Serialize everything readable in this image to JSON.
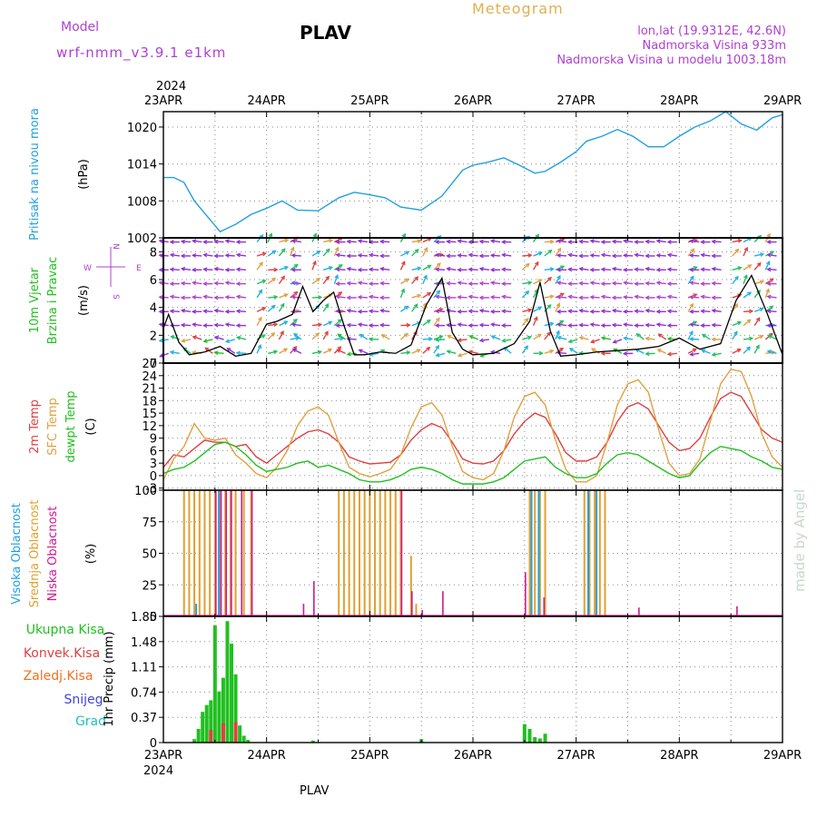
{
  "header": {
    "model_label": "Model",
    "model_name": "wrf-nmm_v3.9.1 e1km",
    "station": "PLAV",
    "chart_title": "Meteogram",
    "location": "lon,lat (19.9312E, 42.6N)",
    "elevation": "Nadmorska Visina 933m",
    "model_elevation": "Nadmorska Visina u modelu 1003.18m"
  },
  "footer": {
    "station": "PLAV",
    "credit": "made by Angel"
  },
  "colors": {
    "header_purple": "#b040d0",
    "title_orange": "#e0b050",
    "pressure": "#20a0e0",
    "temp_2m": "#e04040",
    "temp_sfc": "#e0a040",
    "dewpoint": "#20c020",
    "cloud_high": "#20a0e0",
    "cloud_mid": "#e0a030",
    "cloud_low": "#d01890",
    "rain_total": "#20c020",
    "rain_conv": "#e04040",
    "rain_frz": "#f07020",
    "snow": "#4040e0",
    "hail": "#20c0c0"
  },
  "chart_data": [
    {
      "panel": "pressure",
      "type": "line",
      "year_label": "2024",
      "x_labels": [
        "23APR",
        "24APR",
        "25APR",
        "26APR",
        "27APR",
        "28APR",
        "29APR"
      ],
      "ylabel": "Pritisak na nivou mora",
      "units": "(hPa)",
      "y_ticks": [
        "1002",
        "1008",
        "1014",
        "1020"
      ],
      "ylim": [
        1002,
        1022.5
      ],
      "x_days": [
        0,
        0.1,
        0.2,
        0.3,
        0.45,
        0.55,
        0.7,
        0.85,
        1.0,
        1.15,
        1.3,
        1.5,
        1.7,
        1.85,
        2.0,
        2.15,
        2.3,
        2.5,
        2.7,
        2.9,
        3.0,
        3.15,
        3.3,
        3.45,
        3.6,
        3.7,
        3.85,
        4.0,
        4.1,
        4.25,
        4.4,
        4.55,
        4.7,
        4.85,
        5.0,
        5.15,
        5.3,
        5.45,
        5.6,
        5.75,
        5.9,
        6.0
      ],
      "values": [
        1011.8,
        1011.8,
        1011.0,
        1008.0,
        1005.0,
        1003.0,
        1004.2,
        1005.8,
        1006.8,
        1008.0,
        1006.5,
        1006.4,
        1008.5,
        1009.4,
        1009.0,
        1008.5,
        1007.0,
        1006.5,
        1008.8,
        1013.0,
        1013.8,
        1014.3,
        1015.0,
        1013.8,
        1012.5,
        1012.8,
        1014.3,
        1016.0,
        1017.7,
        1018.5,
        1019.6,
        1018.5,
        1016.8,
        1016.8,
        1018.5,
        1020.0,
        1021.0,
        1022.5,
        1020.5,
        1019.5,
        1021.5,
        1022.0
      ]
    },
    {
      "panel": "wind",
      "type": "line",
      "x_labels": [
        "23APR",
        "24APR",
        "25APR",
        "26APR",
        "27APR",
        "28APR",
        "29APR"
      ],
      "ylabel_lines": [
        "10m Vjetar",
        "Brzina i Pravac"
      ],
      "units": "(m/s)",
      "compass": {
        "w": "W",
        "e": "E",
        "n": "N",
        "s": "S"
      },
      "y_ticks": [
        "0",
        "2",
        "4",
        "6",
        "8"
      ],
      "ylim": [
        0,
        9
      ],
      "x_days": [
        0,
        0.05,
        0.15,
        0.25,
        0.4,
        0.55,
        0.7,
        0.85,
        1.0,
        1.1,
        1.25,
        1.35,
        1.45,
        1.55,
        1.65,
        1.75,
        1.85,
        1.95,
        2.1,
        2.25,
        2.4,
        2.55,
        2.7,
        2.8,
        2.9,
        3.0,
        3.2,
        3.4,
        3.55,
        3.65,
        3.75,
        3.85,
        4.0,
        4.2,
        4.4,
        4.6,
        4.8,
        5.0,
        5.2,
        5.4,
        5.55,
        5.7,
        5.85,
        6.0
      ],
      "values": [
        2.5,
        3.5,
        1.5,
        0.6,
        0.8,
        1.2,
        0.5,
        0.7,
        2.8,
        3.0,
        3.5,
        5.5,
        3.7,
        4.5,
        5.1,
        2.7,
        0.6,
        0.6,
        0.8,
        0.7,
        1.3,
        4.2,
        6.1,
        2.2,
        1.0,
        0.6,
        0.7,
        1.4,
        3.0,
        5.8,
        2.3,
        0.5,
        0.6,
        0.8,
        0.9,
        1.0,
        1.2,
        1.8,
        1.0,
        1.4,
        4.5,
        6.3,
        3.6,
        0.6
      ]
    },
    {
      "panel": "temperature",
      "type": "line",
      "x_labels": [
        "23APR",
        "24APR",
        "25APR",
        "26APR",
        "27APR",
        "28APR",
        "29APR"
      ],
      "ylabel_lines": [
        "2m Temp",
        "SFC Temp",
        "dewpt Temp"
      ],
      "units": "(C)",
      "y_ticks": [
        "-3",
        "0",
        "3",
        "6",
        "9",
        "12",
        "15",
        "18",
        "21",
        "24",
        "27"
      ],
      "ylim": [
        -3.5,
        27
      ],
      "x_days": [
        0,
        0.1,
        0.2,
        0.3,
        0.4,
        0.5,
        0.6,
        0.7,
        0.8,
        0.9,
        1.0,
        1.1,
        1.2,
        1.3,
        1.4,
        1.5,
        1.6,
        1.7,
        1.8,
        1.9,
        2.0,
        2.1,
        2.2,
        2.3,
        2.4,
        2.5,
        2.6,
        2.7,
        2.8,
        2.9,
        3.0,
        3.1,
        3.2,
        3.3,
        3.4,
        3.5,
        3.6,
        3.7,
        3.8,
        3.9,
        4.0,
        4.1,
        4.2,
        4.3,
        4.4,
        4.5,
        4.6,
        4.7,
        4.8,
        4.9,
        5.0,
        5.1,
        5.2,
        5.3,
        5.4,
        5.5,
        5.6,
        5.7,
        5.8,
        5.9,
        6.0
      ],
      "series": [
        {
          "name": "2m Temp",
          "values": [
            2.0,
            5.0,
            4.5,
            6.5,
            8.5,
            8.0,
            8.0,
            7.0,
            7.5,
            4.5,
            3.0,
            5.0,
            7.0,
            9.0,
            10.5,
            11.0,
            10.0,
            8.0,
            4.5,
            3.5,
            2.8,
            3.0,
            3.2,
            5.0,
            8.5,
            11.0,
            12.5,
            11.5,
            8.0,
            4.0,
            3.0,
            2.8,
            3.5,
            6.0,
            10.0,
            13.0,
            15.0,
            14.0,
            10.0,
            5.5,
            3.5,
            3.5,
            4.5,
            8.0,
            13.0,
            16.5,
            17.5,
            16.0,
            12.0,
            8.0,
            6.0,
            6.5,
            9.0,
            14.0,
            18.5,
            20.0,
            19.0,
            15.0,
            11.0,
            9.0,
            8.0
          ]
        },
        {
          "name": "SFC Temp",
          "values": [
            -1.0,
            4.0,
            7.0,
            12.5,
            9.0,
            8.5,
            9.0,
            5.0,
            3.0,
            0.5,
            -0.5,
            2.0,
            6.0,
            12.0,
            15.5,
            16.5,
            14.5,
            8.0,
            2.0,
            0.5,
            -0.3,
            0.5,
            1.5,
            5.0,
            11.5,
            16.5,
            17.5,
            14.5,
            7.0,
            1.0,
            -0.5,
            -1.0,
            0.5,
            6.0,
            14.0,
            19.0,
            20.0,
            17.0,
            8.5,
            1.5,
            -1.5,
            -1.5,
            0.0,
            8.0,
            17.0,
            22.0,
            23.0,
            20.0,
            11.0,
            3.0,
            0.0,
            0.5,
            4.0,
            13.0,
            22.0,
            25.5,
            25.0,
            19.0,
            10.0,
            4.5,
            2.0
          ]
        },
        {
          "name": "dewpt Temp",
          "values": [
            0.5,
            1.5,
            2.0,
            3.5,
            5.5,
            7.5,
            8.0,
            7.0,
            5.0,
            2.5,
            1.0,
            1.5,
            2.0,
            3.0,
            3.5,
            2.0,
            2.5,
            1.5,
            0.5,
            -1.0,
            -1.5,
            -1.5,
            -1.0,
            0.0,
            1.5,
            2.0,
            1.5,
            0.5,
            -1.0,
            -2.0,
            -2.0,
            -2.0,
            -1.5,
            -0.5,
            1.5,
            3.5,
            4.0,
            4.5,
            2.0,
            0.5,
            -0.5,
            -0.5,
            0.5,
            3.0,
            5.0,
            5.5,
            5.0,
            3.5,
            2.0,
            0.5,
            -0.5,
            0.0,
            3.0,
            5.5,
            7.0,
            6.5,
            6.0,
            4.5,
            3.5,
            2.0,
            1.5
          ]
        }
      ]
    },
    {
      "panel": "clouds",
      "type": "bar",
      "x_labels": [
        "23APR",
        "24APR",
        "25APR",
        "26APR",
        "27APR",
        "28APR",
        "29APR"
      ],
      "ylabel_lines": [
        "Visoka Oblacnost",
        "Srednja Oblacnost",
        "Niska Oblacnost"
      ],
      "units": "(%)",
      "y_ticks": [
        "0",
        "25",
        "50",
        "75",
        "100"
      ],
      "ylim": [
        0,
        100
      ],
      "series": [
        {
          "name": "Visoka Oblacnost",
          "x_days": [
            0.3,
            0.52,
            3.55,
            3.62,
            4.1,
            4.18
          ],
          "values": [
            10,
            100,
            100,
            100,
            100,
            100
          ]
        },
        {
          "name": "Srednja Oblacnost",
          "x_days": [
            0.2,
            0.25,
            0.3,
            0.35,
            0.4,
            0.45,
            0.5,
            0.55,
            0.6,
            0.65,
            0.7,
            0.78,
            0.85,
            1.7,
            1.75,
            1.8,
            1.85,
            1.9,
            1.95,
            2.0,
            2.05,
            2.1,
            2.15,
            2.2,
            2.25,
            2.3,
            2.4,
            2.45,
            3.55,
            3.6,
            3.65,
            3.7,
            4.08,
            4.13,
            4.18,
            4.23,
            4.28
          ]
        },
        {
          "name": "Niska Oblacnost",
          "x_days": [
            0.5,
            0.55,
            0.6,
            0.65,
            0.75,
            0.85,
            1.35,
            1.45,
            2.3,
            2.4,
            2.5,
            2.7,
            3.5,
            3.68,
            4.6,
            5.55
          ],
          "values": [
            100,
            100,
            100,
            100,
            100,
            100,
            10,
            28,
            100,
            20,
            5,
            20,
            35,
            15,
            7,
            8
          ]
        }
      ],
      "series_mid_values": [
        100,
        100,
        100,
        100,
        100,
        100,
        100,
        100,
        100,
        100,
        100,
        100,
        100,
        100,
        100,
        100,
        100,
        100,
        100,
        100,
        100,
        100,
        100,
        100,
        100,
        100,
        48,
        10,
        100,
        100,
        100,
        100,
        100,
        100,
        100,
        100,
        100
      ]
    },
    {
      "panel": "precipitation",
      "type": "bar",
      "x_labels": [
        "23APR",
        "24APR",
        "25APR",
        "26APR",
        "27APR",
        "28APR",
        "29APR"
      ],
      "year_label": "2024",
      "legend": [
        "Ukupna Kisa",
        "Konvek.Kisa",
        "Zaledj.Kisa",
        "Snijeg",
        "Grad"
      ],
      "ylabel": "1hr Precip (mm)",
      "y_ticks": [
        "0",
        "0.37",
        "0.74",
        "1.11",
        "1.48",
        "1.85"
      ],
      "ylim": [
        0,
        1.85
      ],
      "x_days": [
        0.3,
        0.34,
        0.38,
        0.42,
        0.46,
        0.5,
        0.54,
        0.58,
        0.62,
        0.66,
        0.7,
        0.74,
        0.78,
        0.82,
        1.45,
        2.5,
        3.5,
        3.55,
        3.6,
        3.65,
        3.7
      ],
      "values": [
        0.05,
        0.2,
        0.45,
        0.55,
        0.62,
        1.72,
        0.75,
        0.95,
        1.78,
        1.45,
        1.0,
        0.25,
        0.1,
        0.04,
        0.03,
        0.05,
        0.27,
        0.2,
        0.08,
        0.06,
        0.13
      ]
    }
  ]
}
